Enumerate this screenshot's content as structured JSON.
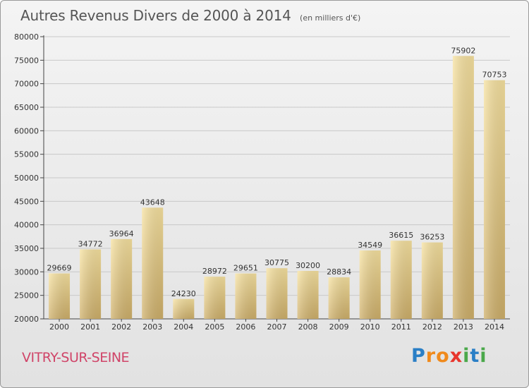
{
  "title": {
    "main": "Autres Revenus Divers de 2000 à 2014",
    "unit": "(en milliers d'€)"
  },
  "place_name": "VITRY-SUR-SEINE",
  "logo": {
    "text": "Proxiti",
    "letters": [
      {
        "char": "P",
        "color": "#2a7fc6"
      },
      {
        "char": "r",
        "color": "#f08a1c"
      },
      {
        "char": "o",
        "color": "#f08a1c"
      },
      {
        "char": "x",
        "color": "#e8352c"
      },
      {
        "char": "i",
        "color": "#4aa84a"
      },
      {
        "char": "t",
        "color": "#2a7fc6"
      },
      {
        "char": "i",
        "color": "#4aa84a"
      }
    ]
  },
  "colors": {
    "bar_light": "#f7e2a0",
    "bar_dark": "#cfb06a",
    "grid": "#c8c8c8",
    "axis": "#444444"
  },
  "chart_data": {
    "type": "bar",
    "title": "Autres Revenus Divers de 2000 à 2014",
    "subtitle": "(en milliers d'€)",
    "xlabel": "",
    "ylabel": "",
    "ylim": [
      20000,
      80000
    ],
    "ytick_step": 5000,
    "yticks": [
      "20000",
      "25000",
      "30000",
      "35000",
      "40000",
      "45000",
      "50000",
      "55000",
      "60000",
      "65000",
      "70000",
      "75000",
      "80000"
    ],
    "grid": true,
    "categories": [
      "2000",
      "2001",
      "2002",
      "2003",
      "2004",
      "2005",
      "2006",
      "2007",
      "2008",
      "2009",
      "2010",
      "2011",
      "2012",
      "2013",
      "2014"
    ],
    "values": [
      29669,
      34772,
      36964,
      43648,
      24230,
      28972,
      29651,
      30775,
      30200,
      28834,
      34549,
      36615,
      36253,
      75902,
      70753
    ]
  }
}
